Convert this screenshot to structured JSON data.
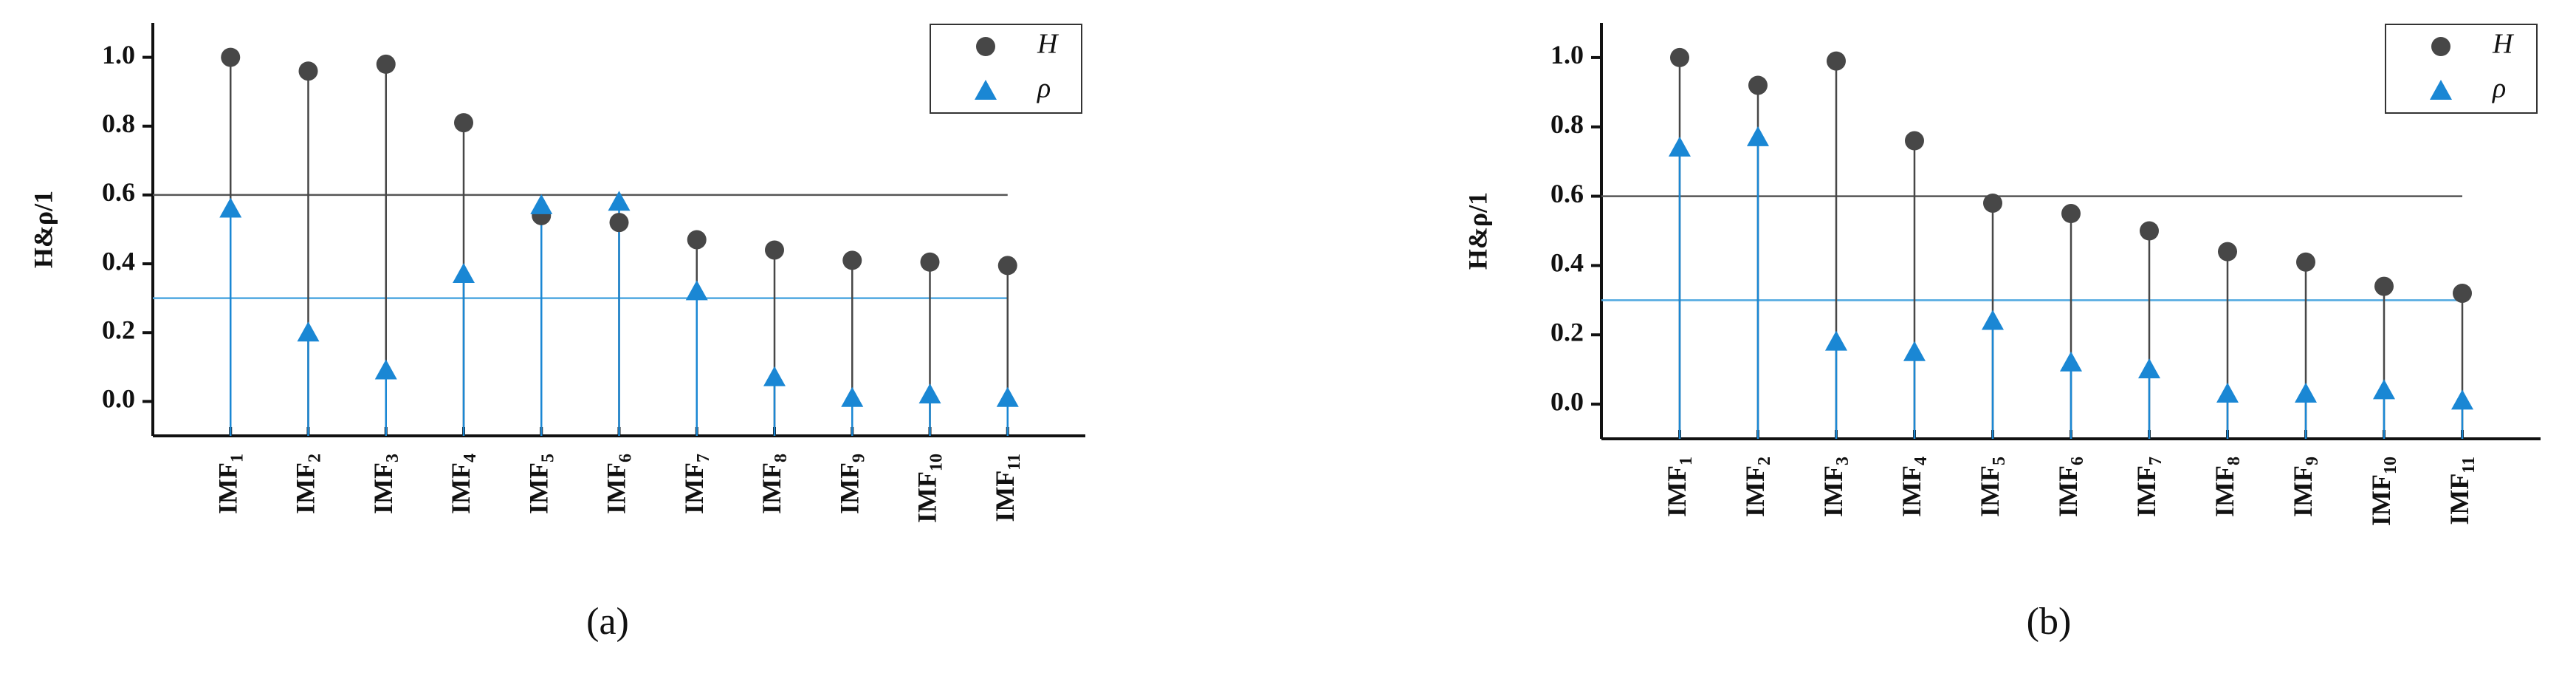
{
  "chart_data": [
    {
      "type": "stem",
      "caption": "(a)",
      "y_label": "H&ρ/1",
      "categories": [
        "IMF1",
        "IMF2",
        "IMF3",
        "IMF4",
        "IMF5",
        "IMF6",
        "IMF7",
        "IMF8",
        "IMF9",
        "IMF10",
        "IMF11"
      ],
      "series": [
        {
          "name": "H",
          "color": "#474747",
          "marker": "circle",
          "values": [
            1.0,
            0.96,
            0.98,
            0.81,
            0.54,
            0.52,
            0.47,
            0.44,
            0.41,
            0.405,
            0.395
          ]
        },
        {
          "name": "ρ",
          "color": "#1a87d4",
          "marker": "triangle",
          "values": [
            0.56,
            0.2,
            0.09,
            0.37,
            0.57,
            0.58,
            0.32,
            0.07,
            0.01,
            0.02,
            0.01
          ]
        }
      ],
      "reference_lines": [
        {
          "value": 0.6,
          "color": "#555555"
        },
        {
          "value": 0.3,
          "color": "#4fa8e0"
        }
      ],
      "ylim": [
        -0.1,
        1.1
      ],
      "yticks": [
        {
          "value": 0,
          "label": "0.0"
        },
        0.2,
        0.4,
        0.6,
        0.8,
        {
          "value": 1,
          "label": "1.0"
        }
      ],
      "legend": "upper right"
    },
    {
      "type": "stem",
      "caption": "(b)",
      "y_label": "H&ρ/1",
      "categories": [
        "IMF1",
        "IMF2",
        "IMF3",
        "IMF4",
        "IMF5",
        "IMF6",
        "IMF7",
        "IMF8",
        "IMF9",
        "IMF10",
        "IMF11"
      ],
      "series": [
        {
          "name": "H",
          "color": "#474747",
          "marker": "circle",
          "values": [
            1.0,
            0.92,
            0.99,
            0.76,
            0.58,
            0.55,
            0.5,
            0.44,
            0.41,
            0.34,
            0.32
          ]
        },
        {
          "name": "ρ",
          "color": "#1a87d4",
          "marker": "triangle",
          "values": [
            0.74,
            0.77,
            0.18,
            0.15,
            0.24,
            0.12,
            0.1,
            0.03,
            0.03,
            0.04,
            0.01
          ]
        }
      ],
      "reference_lines": [
        {
          "value": 0.6,
          "color": "#555555"
        },
        {
          "value": 0.3,
          "color": "#4fa8e0"
        }
      ],
      "ylim": [
        -0.1,
        1.1
      ],
      "yticks": [
        {
          "value": 0,
          "label": "0.0"
        },
        0.2,
        0.4,
        0.6,
        0.8,
        {
          "value": 1,
          "label": "1.0"
        }
      ],
      "legend": "upper right"
    }
  ]
}
